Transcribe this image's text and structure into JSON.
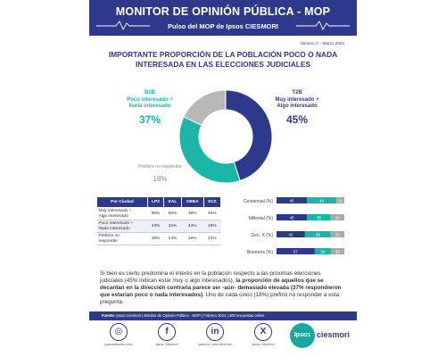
{
  "header": {
    "title": "MONITOR DE OPINIÓN PÚBLICA - MOP",
    "subtitle": "Pulso del MOP de Ipsos CIESMORI"
  },
  "issue": "Número 2 – Marzo 2024",
  "headline_line1": "IMPORTANTE PROPORCIÓN DE LA POBLACIÓN POCO O NADA",
  "headline_line2": "INTERESADA EN LAS ELECCIONES JUDICIALES",
  "donut": {
    "b2b": {
      "tag": "B2B",
      "line1": "Poco interesado +",
      "line2": "Nada interesado",
      "pct": "37%"
    },
    "t2b": {
      "tag": "T2B",
      "line1": "Muy interesado +",
      "line2": "Algo interesado",
      "pct": "45%"
    },
    "nr": {
      "label": "Prefiere no responder",
      "pct": "18%"
    },
    "colors": {
      "t2b": "#2d3a8c",
      "b2b": "#1db5a8",
      "nr": "#b8b8b8"
    }
  },
  "chart_data": [
    {
      "type": "pie",
      "categories": [
        "Muy interesado + Algo interesado",
        "Poco interesado + Nada interesado",
        "Prefiere no responder"
      ],
      "values": [
        45,
        37,
        18
      ]
    },
    {
      "type": "bar",
      "orientation": "horizontal",
      "stacked": true,
      "categories": [
        "Centennial (%)",
        "Millenial (%)",
        "Gen. X (%)",
        "Boomers (%)"
      ],
      "series": [
        {
          "values": [
            45,
            45,
            42,
            57
          ]
        },
        {
          "values": [
            43,
            35,
            38,
            24
          ]
        },
        {
          "values": [
            12,
            20,
            20,
            20
          ]
        }
      ],
      "colors": [
        "#2d3a8c",
        "#1db5a8",
        "#a9a9a9"
      ]
    }
  ],
  "table": {
    "headers": [
      "Por Ciudad",
      "LPZ",
      "EAL",
      "CBBA",
      "SCZ"
    ],
    "rows": [
      {
        "label1": "Muy interesado +",
        "label2": "Algo interesado",
        "values": [
          "39%",
          "55%",
          "39%",
          "45%"
        ]
      },
      {
        "label1": "Poco interesado +",
        "label2": "Nada interesado",
        "values": [
          "43%",
          "32%",
          "43%",
          "33%"
        ]
      },
      {
        "label1": "Prefiere no",
        "label2": "responder",
        "values": [
          "18%",
          "13%",
          "18%",
          "22%"
        ]
      }
    ]
  },
  "paragraph": {
    "line1": "Si bien es cierto predomina el interés en la población respecto a las próximas",
    "line2a": "elecciones judiciales (45% indican estar muy o algo interesados), ",
    "line2b": "la proporción de",
    "line3": "aquellos que se decantan en la dirección contraria parece ser -aún- demasiado",
    "line4a": "elevada (37% respondieron que estarían poco o nada interesados)",
    "line4b": ". Uno de cada",
    "line5": "cinco (18%) prefirió no responder a esta pregunta."
  },
  "source": {
    "label": "Fuente:",
    "text": "Ipsos Ciesmori | Monitor de Opinión Pública - MOP | Febrero 2024 | 400 encuestas online"
  },
  "social": [
    {
      "icon": "web-icon",
      "glyph": "◎",
      "label": "ipsosciesmori.com"
    },
    {
      "icon": "facebook-icon",
      "glyph": "f",
      "label": "Ipsos Ciesmori"
    },
    {
      "icon": "linkedin-icon",
      "glyph": "in",
      "label": "Ipsos in Latin America"
    },
    {
      "icon": "x-icon",
      "glyph": "X",
      "label": "Ipsos Ciesmori"
    }
  ],
  "brand": {
    "ipsos": "Ipsos",
    "ciesmori": "ciesmori"
  }
}
